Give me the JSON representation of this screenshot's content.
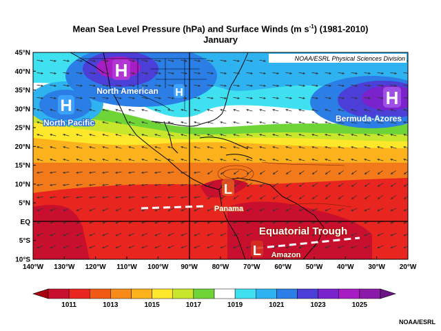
{
  "header": {
    "title_main": "Mean Sea Level Pressure (hPa) and Surface Winds (m s",
    "title_sup": "-1",
    "title_end": ") (1981-2010)",
    "subtitle": "January"
  },
  "watermark": "NOAA/ESRL Physical Sciences Division",
  "axes": {
    "lat_ticks": [
      "45°N",
      "40°N",
      "35°N",
      "30°N",
      "25°N",
      "20°N",
      "15°N",
      "10°N",
      "5°N",
      "EQ",
      "5°S",
      "10°S"
    ],
    "lon_ticks": [
      "140°W",
      "130°W",
      "120°W",
      "110°W",
      "100°W",
      "90°W",
      "80°W",
      "70°W",
      "60°W",
      "50°W",
      "40°W",
      "30°W",
      "20°W"
    ]
  },
  "pressure_systems": [
    {
      "symbol": "H",
      "name": "North Pacific"
    },
    {
      "symbol": "H",
      "name": "North American"
    },
    {
      "symbol": "H",
      "name": ""
    },
    {
      "symbol": "H",
      "name": "Bermuda-Azores"
    },
    {
      "symbol": "L",
      "name": "Panama"
    },
    {
      "symbol": "L",
      "name": "Amazon"
    }
  ],
  "trough_label": "Equatorial Trough",
  "colorbar": {
    "labels": [
      "1011",
      "1013",
      "1015",
      "1017",
      "1019",
      "1021",
      "1023",
      "1025"
    ],
    "colors": [
      "#c8102e",
      "#e8251e",
      "#f05a14",
      "#f78a18",
      "#fbb21c",
      "#fde72a",
      "#c8e62c",
      "#6fd437",
      "#ffffff",
      "#3fe0f0",
      "#2fb2f0",
      "#2a7ee6",
      "#4b3fd8",
      "#7a22cc",
      "#a81cc4",
      "#8a1aa8"
    ]
  },
  "credit": "NOAA/ESRL"
}
